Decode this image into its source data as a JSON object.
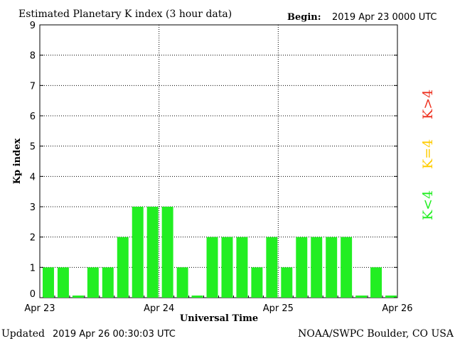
{
  "header": {
    "title": "Estimated Planetary K index (3 hour data)",
    "begin_label": "Begin:",
    "begin_value": "2019 Apr 23 0000 UTC"
  },
  "footer": {
    "updated_label": "Updated",
    "updated_value": "2019 Apr 26 00:30:03 UTC",
    "source": "NOAA/SWPC Boulder, CO USA"
  },
  "legend": {
    "low": "K<4",
    "mid": "K=4",
    "high": "K>4"
  },
  "colors": {
    "low": "#22ee22",
    "mid": "#ffcc00",
    "high": "#ee3322"
  },
  "chart_data": {
    "type": "bar",
    "ylabel": "Kp index",
    "xlabel": "Universal Time",
    "ylim": [
      0,
      9
    ],
    "yticks": [
      0,
      1,
      2,
      3,
      4,
      5,
      6,
      7,
      8,
      9
    ],
    "xticks": [
      "Apr 23",
      "Apr 24",
      "Apr 25",
      "Apr 26"
    ],
    "grid": true,
    "values": [
      1,
      1,
      0,
      1,
      1,
      2,
      3,
      3,
      3,
      1,
      0,
      2,
      2,
      2,
      1,
      2,
      1,
      2,
      2,
      2,
      2,
      0,
      1,
      0
    ]
  }
}
